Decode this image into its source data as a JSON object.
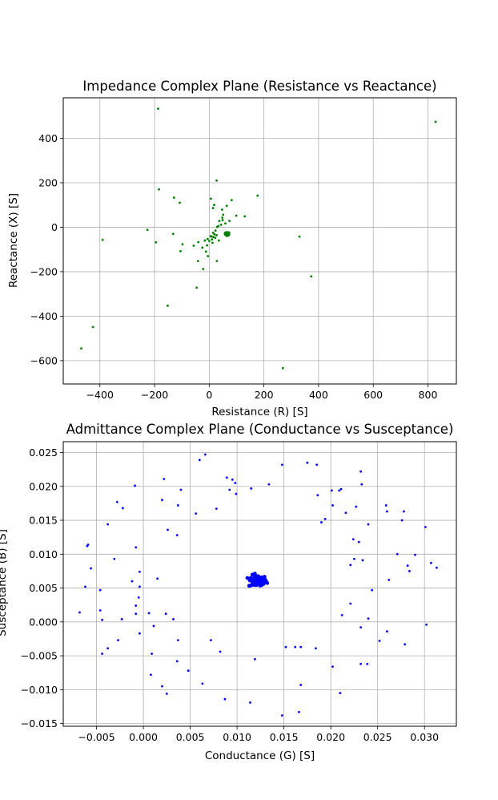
{
  "chart_data": [
    {
      "type": "scatter",
      "title": "Impedance Complex Plane (Resistance vs Reactance)",
      "xlabel": "Resistance (R) [S]",
      "ylabel": "Reactance (X) [S]",
      "xlim": [
        -534,
        904
      ],
      "ylim": [
        -705,
        582
      ],
      "xticks": [
        -400,
        -200,
        0,
        200,
        400,
        600,
        800
      ],
      "yticks": [
        -600,
        -400,
        -200,
        0,
        200,
        400
      ],
      "xtick_labels": [
        "−400",
        "−200",
        "0",
        "200",
        "400",
        "600",
        "800"
      ],
      "ytick_labels": [
        "−600",
        "−400",
        "−200",
        "0",
        "200",
        "400"
      ],
      "grid": true,
      "color": "#008000",
      "cluster": {
        "center": [
          66,
          -30
        ],
        "count": 60,
        "spread": [
          5,
          4
        ]
      },
      "points": [
        [
          -187,
          533
        ],
        [
          828,
          474
        ],
        [
          27,
          210
        ],
        [
          -184,
          170
        ],
        [
          177,
          142
        ],
        [
          -129,
          133
        ],
        [
          6,
          128
        ],
        [
          82,
          122
        ],
        [
          -108,
          110
        ],
        [
          18,
          100
        ],
        [
          64,
          96
        ],
        [
          14,
          86
        ],
        [
          47,
          79
        ],
        [
          51,
          56
        ],
        [
          99,
          52
        ],
        [
          130,
          49
        ],
        [
          48,
          43
        ],
        [
          49,
          32
        ],
        [
          37,
          28
        ],
        [
          74,
          28
        ],
        [
          59,
          17
        ],
        [
          43,
          11
        ],
        [
          33,
          5
        ],
        [
          29,
          1
        ],
        [
          -226,
          -12
        ],
        [
          -132,
          -30
        ],
        [
          23,
          -15
        ],
        [
          14,
          -25
        ],
        [
          19,
          -32
        ],
        [
          27,
          -36
        ],
        [
          330,
          -42
        ],
        [
          8,
          -42
        ],
        [
          15,
          -44
        ],
        [
          22,
          -48
        ],
        [
          10,
          -55
        ],
        [
          -390,
          -57
        ],
        [
          -6,
          -53
        ],
        [
          -195,
          -68
        ],
        [
          -40,
          -67
        ],
        [
          -16,
          -60
        ],
        [
          0,
          -62
        ],
        [
          -98,
          -77
        ],
        [
          -57,
          -83
        ],
        [
          -8,
          -82
        ],
        [
          -25,
          -92
        ],
        [
          -105,
          -108
        ],
        [
          -5,
          -130
        ],
        [
          28,
          -152
        ],
        [
          -41,
          -152
        ],
        [
          -22,
          -188
        ],
        [
          373,
          -221
        ],
        [
          -46,
          -272
        ],
        [
          -152,
          -353
        ],
        [
          -425,
          -449
        ],
        [
          -468,
          -545
        ],
        [
          269,
          -634
        ],
        [
          12,
          -70
        ],
        [
          35,
          -60
        ],
        [
          -12,
          -110
        ],
        [
          5,
          -40
        ]
      ]
    },
    {
      "type": "scatter",
      "title": "Admittance Complex Plane (Conductance vs Susceptance)",
      "xlabel": "Conductance (G) [S]",
      "ylabel": "Susceptance (B) [S]",
      "xlim": [
        -0.00855,
        0.0334
      ],
      "ylim": [
        -0.0154,
        0.0266
      ],
      "xticks": [
        -0.005,
        0.0,
        0.005,
        0.01,
        0.015,
        0.02,
        0.025,
        0.03
      ],
      "yticks": [
        -0.015,
        -0.01,
        -0.005,
        0.0,
        0.005,
        0.01,
        0.015,
        0.02,
        0.025
      ],
      "xtick_labels": [
        "−0.005",
        "0.000",
        "0.005",
        "0.010",
        "0.015",
        "0.020",
        "0.025",
        "0.030"
      ],
      "ytick_labels": [
        "−0.015",
        "−0.010",
        "−0.005",
        "0.000",
        "0.005",
        "0.010",
        "0.015",
        "0.020",
        "0.025"
      ],
      "grid": true,
      "color": "#0000ff",
      "cluster": {
        "center": [
          0.0122,
          0.006
        ],
        "count": 70,
        "spread": [
          0.0008,
          0.00075
        ]
      },
      "points": [
        [
          0.0066,
          0.0247
        ],
        [
          0.006,
          0.0239
        ],
        [
          0.0148,
          0.0232
        ],
        [
          0.0175,
          0.0235
        ],
        [
          0.0185,
          0.0232
        ],
        [
          0.0232,
          0.0222
        ],
        [
          0.0022,
          0.0211
        ],
        [
          0.0089,
          0.0213
        ],
        [
          0.0095,
          0.021
        ],
        [
          0.0098,
          0.0205
        ],
        [
          0.0134,
          0.0203
        ],
        [
          0.0233,
          0.0203
        ],
        [
          -0.0009,
          0.0201
        ],
        [
          0.004,
          0.0195
        ],
        [
          0.0092,
          0.0195
        ],
        [
          0.0115,
          0.0197
        ],
        [
          0.0201,
          0.0194
        ],
        [
          0.0209,
          0.0194
        ],
        [
          0.0211,
          0.0196
        ],
        [
          0.0099,
          0.0189
        ],
        [
          0.0186,
          0.0187
        ],
        [
          0.002,
          0.018
        ],
        [
          -0.0028,
          0.0177
        ],
        [
          0.0037,
          0.0172
        ],
        [
          0.0202,
          0.0172
        ],
        [
          0.0259,
          0.0172
        ],
        [
          -0.0022,
          0.0168
        ],
        [
          0.0078,
          0.0167
        ],
        [
          0.0227,
          0.017
        ],
        [
          0.0216,
          0.0161
        ],
        [
          0.026,
          0.0163
        ],
        [
          0.0278,
          0.0163
        ],
        [
          0.0056,
          0.016
        ],
        [
          0.0194,
          0.0152
        ],
        [
          0.019,
          0.0147
        ],
        [
          0.0276,
          0.015
        ],
        [
          -0.0038,
          0.0144
        ],
        [
          0.024,
          0.0144
        ],
        [
          0.0301,
          0.014
        ],
        [
          0.0026,
          0.0136
        ],
        [
          0.0036,
          0.0128
        ],
        [
          0.0224,
          0.0122
        ],
        [
          0.023,
          0.0118
        ],
        [
          -0.006,
          0.0112
        ],
        [
          -0.0059,
          0.0114
        ],
        [
          -0.0008,
          0.011
        ],
        [
          0.0271,
          0.01
        ],
        [
          0.029,
          0.0099
        ],
        [
          -0.0031,
          0.0093
        ],
        [
          0.0225,
          0.0093
        ],
        [
          0.0234,
          0.0091
        ],
        [
          0.0307,
          0.0087
        ],
        [
          0.0221,
          0.0084
        ],
        [
          0.0282,
          0.0083
        ],
        [
          0.0313,
          0.008
        ],
        [
          -0.0056,
          0.0079
        ],
        [
          -0.0004,
          0.0074
        ],
        [
          0.0284,
          0.0075
        ],
        [
          0.0015,
          0.0064
        ],
        [
          0.0262,
          0.0062
        ],
        [
          -0.0012,
          0.006
        ],
        [
          -0.0062,
          0.0052
        ],
        [
          -0.0004,
          0.0052
        ],
        [
          -0.0046,
          0.0047
        ],
        [
          0.0244,
          0.0047
        ],
        [
          -0.0005,
          0.0036
        ],
        [
          0.0221,
          0.0027
        ],
        [
          -0.0008,
          0.0024
        ],
        [
          -0.0068,
          0.0014
        ],
        [
          -0.0046,
          0.0017
        ],
        [
          -0.0008,
          0.0012
        ],
        [
          0.0006,
          0.0013
        ],
        [
          0.0024,
          0.0012
        ],
        [
          0.0212,
          0.001
        ],
        [
          -0.0023,
          0.0004
        ],
        [
          -0.0044,
          0.0003
        ],
        [
          0.0032,
          0.0004
        ],
        [
          0.024,
          0.0005
        ],
        [
          0.0011,
          -0.0006
        ],
        [
          0.0232,
          -0.0008
        ],
        [
          0.0302,
          -0.0004
        ],
        [
          -0.0004,
          -0.0017
        ],
        [
          0.026,
          -0.0014
        ],
        [
          -0.0027,
          -0.0027
        ],
        [
          0.0037,
          -0.0027
        ],
        [
          0.0072,
          -0.0027
        ],
        [
          0.0252,
          -0.0028
        ],
        [
          0.0279,
          -0.0033
        ],
        [
          -0.0038,
          -0.0039
        ],
        [
          0.0152,
          -0.0037
        ],
        [
          0.0162,
          -0.0037
        ],
        [
          0.0168,
          -0.0037
        ],
        [
          0.0184,
          -0.0039
        ],
        [
          0.0082,
          -0.0044
        ],
        [
          -0.0044,
          -0.0047
        ],
        [
          0.0009,
          -0.0047
        ],
        [
          0.0119,
          -0.0055
        ],
        [
          0.0036,
          -0.0058
        ],
        [
          0.0232,
          -0.0062
        ],
        [
          0.0239,
          -0.0062
        ],
        [
          0.0202,
          -0.0066
        ],
        [
          0.0048,
          -0.0072
        ],
        [
          0.0008,
          -0.0078
        ],
        [
          0.0063,
          -0.0091
        ],
        [
          0.0168,
          -0.0093
        ],
        [
          0.002,
          -0.0095
        ],
        [
          0.0025,
          -0.0106
        ],
        [
          0.021,
          -0.0105
        ],
        [
          0.0087,
          -0.0114
        ],
        [
          0.0114,
          -0.0119
        ],
        [
          0.0166,
          -0.0133
        ],
        [
          0.0148,
          -0.0138
        ]
      ]
    }
  ]
}
